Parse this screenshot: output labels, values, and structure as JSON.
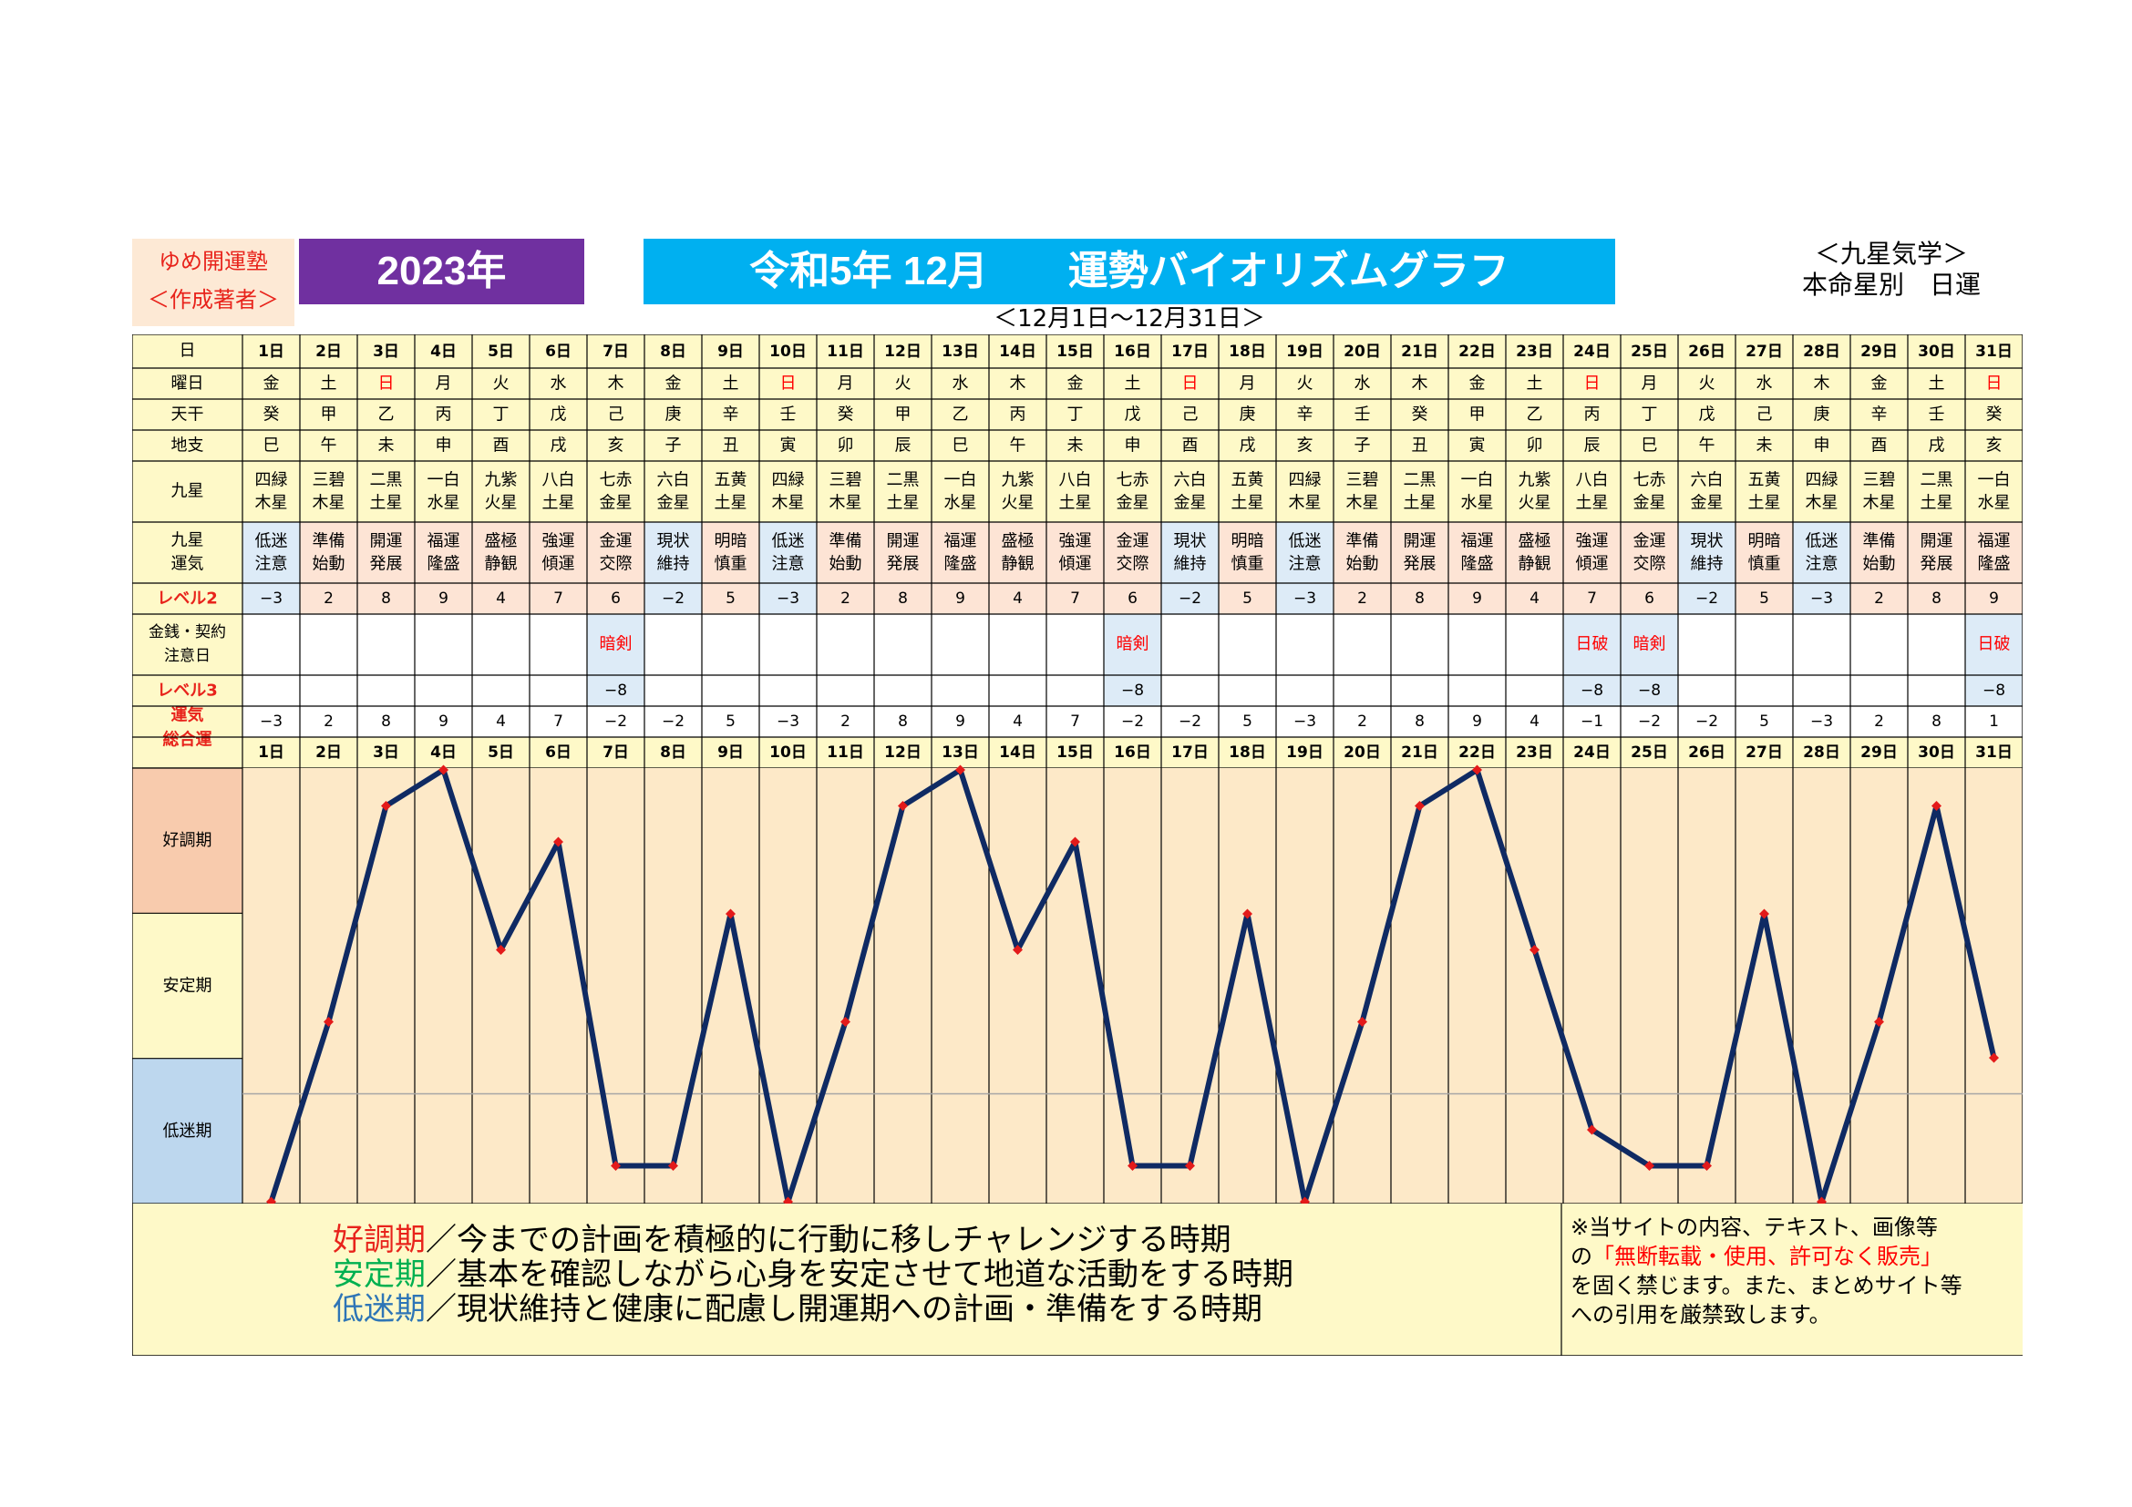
{
  "header": {
    "school_line1": "ゆめ開運塾",
    "school_line2": "＜作成著者＞",
    "year": "2023年",
    "title": "令和5年 12月　　運勢バイオリズムグラフ",
    "subtitle": "＜12月1日～12月31日＞",
    "right_line1": "＜九星気学＞",
    "right_line2": "本命星別　日運"
  },
  "row_labels": {
    "day": "日",
    "weekday": "曜日",
    "tenkan": "天干",
    "chishi": "地支",
    "kyusei": "九星",
    "unki": [
      "九星",
      "運気"
    ],
    "level2": "レベル2",
    "kinsen": [
      "金銭・契約",
      "注意日"
    ],
    "level3": "レベル3",
    "total": [
      "運気",
      "総合運"
    ]
  },
  "days": [
    "1日",
    "2日",
    "3日",
    "4日",
    "5日",
    "6日",
    "7日",
    "8日",
    "9日",
    "10日",
    "11日",
    "12日",
    "13日",
    "14日",
    "15日",
    "16日",
    "17日",
    "18日",
    "19日",
    "20日",
    "21日",
    "22日",
    "23日",
    "24日",
    "25日",
    "26日",
    "27日",
    "28日",
    "29日",
    "30日",
    "31日"
  ],
  "weekdays": [
    "金",
    "土",
    "日",
    "月",
    "火",
    "水",
    "木",
    "金",
    "土",
    "日",
    "月",
    "火",
    "水",
    "木",
    "金",
    "土",
    "日",
    "月",
    "火",
    "水",
    "木",
    "金",
    "土",
    "日",
    "月",
    "火",
    "水",
    "木",
    "金",
    "土",
    "日"
  ],
  "tenkan": [
    "癸",
    "甲",
    "乙",
    "丙",
    "丁",
    "戊",
    "己",
    "庚",
    "辛",
    "壬",
    "癸",
    "甲",
    "乙",
    "丙",
    "丁",
    "戊",
    "己",
    "庚",
    "辛",
    "壬",
    "癸",
    "甲",
    "乙",
    "丙",
    "丁",
    "戊",
    "己",
    "庚",
    "辛",
    "壬",
    "癸"
  ],
  "chishi": [
    "巳",
    "午",
    "未",
    "申",
    "酉",
    "戌",
    "亥",
    "子",
    "丑",
    "寅",
    "卯",
    "辰",
    "巳",
    "午",
    "未",
    "申",
    "酉",
    "戌",
    "亥",
    "子",
    "丑",
    "寅",
    "卯",
    "辰",
    "巳",
    "午",
    "未",
    "申",
    "酉",
    "戌",
    "亥"
  ],
  "kyusei": [
    [
      "四緑",
      "木星"
    ],
    [
      "三碧",
      "木星"
    ],
    [
      "二黒",
      "土星"
    ],
    [
      "一白",
      "水星"
    ],
    [
      "九紫",
      "火星"
    ],
    [
      "八白",
      "土星"
    ],
    [
      "七赤",
      "金星"
    ],
    [
      "六白",
      "金星"
    ],
    [
      "五黄",
      "土星"
    ],
    [
      "四緑",
      "木星"
    ],
    [
      "三碧",
      "木星"
    ],
    [
      "二黒",
      "土星"
    ],
    [
      "一白",
      "水星"
    ],
    [
      "九紫",
      "火星"
    ],
    [
      "八白",
      "土星"
    ],
    [
      "七赤",
      "金星"
    ],
    [
      "六白",
      "金星"
    ],
    [
      "五黄",
      "土星"
    ],
    [
      "四緑",
      "木星"
    ],
    [
      "三碧",
      "木星"
    ],
    [
      "二黒",
      "土星"
    ],
    [
      "一白",
      "水星"
    ],
    [
      "九紫",
      "火星"
    ],
    [
      "八白",
      "土星"
    ],
    [
      "七赤",
      "金星"
    ],
    [
      "六白",
      "金星"
    ],
    [
      "五黄",
      "土星"
    ],
    [
      "四緑",
      "木星"
    ],
    [
      "三碧",
      "木星"
    ],
    [
      "二黒",
      "土星"
    ],
    [
      "一白",
      "水星"
    ]
  ],
  "unki": [
    [
      "低迷",
      "注意"
    ],
    [
      "準備",
      "始動"
    ],
    [
      "開運",
      "発展"
    ],
    [
      "福運",
      "隆盛"
    ],
    [
      "盛極",
      "静観"
    ],
    [
      "強運",
      "傾運"
    ],
    [
      "金運",
      "交際"
    ],
    [
      "現状",
      "維持"
    ],
    [
      "明暗",
      "慎重"
    ],
    [
      "低迷",
      "注意"
    ],
    [
      "準備",
      "始動"
    ],
    [
      "開運",
      "発展"
    ],
    [
      "福運",
      "隆盛"
    ],
    [
      "盛極",
      "静観"
    ],
    [
      "強運",
      "傾運"
    ],
    [
      "金運",
      "交際"
    ],
    [
      "現状",
      "維持"
    ],
    [
      "明暗",
      "慎重"
    ],
    [
      "低迷",
      "注意"
    ],
    [
      "準備",
      "始動"
    ],
    [
      "開運",
      "発展"
    ],
    [
      "福運",
      "隆盛"
    ],
    [
      "盛極",
      "静観"
    ],
    [
      "強運",
      "傾運"
    ],
    [
      "金運",
      "交際"
    ],
    [
      "現状",
      "維持"
    ],
    [
      "明暗",
      "慎重"
    ],
    [
      "低迷",
      "注意"
    ],
    [
      "準備",
      "始動"
    ],
    [
      "開運",
      "発展"
    ],
    [
      "福運",
      "隆盛"
    ]
  ],
  "level2": [
    "−3",
    "2",
    "8",
    "9",
    "4",
    "7",
    "6",
    "−2",
    "5",
    "−3",
    "2",
    "8",
    "9",
    "4",
    "7",
    "6",
    "−2",
    "5",
    "−3",
    "2",
    "8",
    "9",
    "4",
    "7",
    "6",
    "−2",
    "5",
    "−3",
    "2",
    "8",
    "9"
  ],
  "kinsen": [
    "",
    "",
    "",
    "",
    "",
    "",
    "暗剣",
    "",
    "",
    "",
    "",
    "",
    "",
    "",
    "",
    "暗剣",
    "",
    "",
    "",
    "",
    "",
    "",
    "",
    "日破",
    "暗剣",
    "",
    "",
    "",
    "",
    "",
    "日破"
  ],
  "level3": [
    "",
    "",
    "",
    "",
    "",
    "",
    "−8",
    "",
    "",
    "",
    "",
    "",
    "",
    "",
    "",
    "−8",
    "",
    "",
    "",
    "",
    "",
    "",
    "",
    "−8",
    "−8",
    "",
    "",
    "",
    "",
    "",
    "−8"
  ],
  "totals_text": [
    "−3",
    "2",
    "8",
    "9",
    "4",
    "7",
    "−2",
    "−2",
    "5",
    "−3",
    "2",
    "8",
    "9",
    "4",
    "7",
    "−2",
    "−2",
    "5",
    "−3",
    "2",
    "8",
    "9",
    "4",
    "−1",
    "−2",
    "−2",
    "5",
    "−3",
    "2",
    "8",
    "1"
  ],
  "zones": {
    "good": "好調期",
    "stable": "安定期",
    "low": "低迷期"
  },
  "legend": [
    {
      "term": "好調期",
      "text": "／今までの計画を積極的に行動に移しチャレンジする時期",
      "color": "#e8231b"
    },
    {
      "term": "安定期",
      "text": "／基本を確認しながら心身を安定させて地道な活動をする時期",
      "color": "#00b050"
    },
    {
      "term": "低迷期",
      "text": "／現状維持と健康に配慮し開運期への計画・準備をする時期",
      "color": "#2e75b6"
    }
  ],
  "notice": {
    "line1": "※当サイトの内容、テキスト、画像等",
    "line2_a": "の",
    "line2_red": "「無断転載・使用、許可なく販売」",
    "line3": "を固く禁じます。また、まとめサイト等",
    "line4": "への引用を厳禁致します。"
  },
  "colors": {
    "table_bg": "#fef9c8",
    "peach": "#fde4d5",
    "blue_cell": "#ddebf7",
    "label_red": "#e8231b",
    "sunday": "#ff0000",
    "line": "#0f2a63",
    "marker": "#e31a1a",
    "chart_bg": "#fde9c8",
    "zone_good": "#f8cbad",
    "zone_stable": "#fef9c8",
    "zone_low": "#bdd7ee"
  },
  "chart_data": {
    "type": "line",
    "title": "運勢バイオリズムグラフ",
    "categories": [
      "1日",
      "2日",
      "3日",
      "4日",
      "5日",
      "6日",
      "7日",
      "8日",
      "9日",
      "10日",
      "11日",
      "12日",
      "13日",
      "14日",
      "15日",
      "16日",
      "17日",
      "18日",
      "19日",
      "20日",
      "21日",
      "22日",
      "23日",
      "24日",
      "25日",
      "26日",
      "27日",
      "28日",
      "29日",
      "30日",
      "31日"
    ],
    "series": [
      {
        "values": [
          -3,
          2,
          8,
          9,
          4,
          7,
          -2,
          -2,
          5,
          -3,
          2,
          8,
          9,
          4,
          7,
          -2,
          -2,
          5,
          -3,
          2,
          8,
          9,
          4,
          -1,
          -2,
          -2,
          5,
          -3,
          2,
          8,
          1
        ]
      }
    ],
    "ylim": [
      -3,
      9
    ],
    "reference_line": 0,
    "bands": [
      "好調期",
      "安定期",
      "低迷期"
    ]
  }
}
